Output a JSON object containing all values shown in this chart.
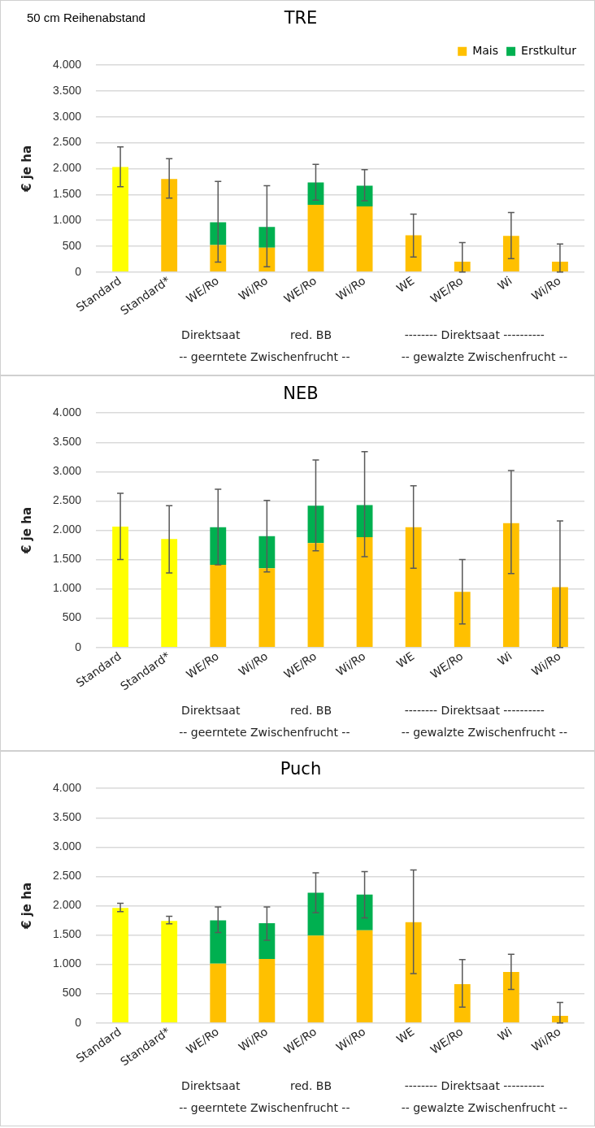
{
  "chart_data": [
    {
      "type": "bar",
      "title": "TRE",
      "subtitle": "50 cm Reihenabstand",
      "ylabel": "€ je ha",
      "stacked": true,
      "legend": "top right",
      "grid": "y",
      "categories": [
        "Standard",
        "Standard*",
        "WE/Ro",
        "Wi/Ro",
        "WE/Ro",
        "Wi/Ro",
        "WE",
        "WE/Ro",
        "Wi",
        "Wi/Ro"
      ],
      "ylim": [
        0,
        4000
      ],
      "yticks": [
        {
          "value": 0,
          "label": "0"
        },
        {
          "value": 500,
          "label": "500"
        },
        {
          "value": 1000,
          "label": "1.000"
        },
        {
          "value": 1500,
          "label": "1.500"
        },
        {
          "value": 2000,
          "label": "2.000"
        },
        {
          "value": 2500,
          "label": "2.500"
        },
        {
          "value": 3000,
          "label": "3.000"
        },
        {
          "value": 3500,
          "label": "3.500"
        },
        {
          "value": 4000,
          "label": "4.000"
        }
      ],
      "series": [
        {
          "name": "Mais",
          "color": "#ffc000",
          "colors": [
            "#ffff00",
            "#ffc000",
            "#ffc000",
            "#ffc000",
            "#ffc000",
            "#ffc000",
            "#ffc000",
            "#ffc000",
            "#ffc000",
            "#ffc000"
          ],
          "values": [
            2030,
            1800,
            520,
            470,
            1300,
            1270,
            710,
            200,
            700,
            200
          ],
          "errors": [
            [
              1650,
              2420
            ],
            [
              1430,
              2190
            ],
            null,
            null,
            null,
            null,
            [
              290,
              1120
            ],
            [
              0,
              570
            ],
            [
              260,
              1150
            ],
            [
              0,
              540
            ]
          ]
        },
        {
          "name": "Erstkultur",
          "color": "#00b050",
          "values": [
            null,
            null,
            440,
            400,
            430,
            400,
            null,
            null,
            null,
            null
          ],
          "errors": [
            null,
            null,
            [
              190,
              1750
            ],
            [
              100,
              1670
            ],
            [
              1390,
              2080
            ],
            [
              1380,
              1980
            ],
            null,
            null,
            null,
            null
          ]
        }
      ],
      "annotations": [
        "Direktsaat",
        "red. BB",
        "-------- Direktsaat ----------",
        "-- geerntete Zwischenfrucht --",
        "-- gewalzte Zwischenfrucht --"
      ]
    },
    {
      "type": "bar",
      "title": "NEB",
      "ylabel": "€ je ha",
      "stacked": true,
      "grid": "y",
      "categories": [
        "Standard",
        "Standard*",
        "WE/Ro",
        "Wi/Ro",
        "WE/Ro",
        "Wi/Ro",
        "WE",
        "WE/Ro",
        "Wi",
        "Wi/Ro"
      ],
      "ylim": [
        0,
        4000
      ],
      "yticks": [
        {
          "value": 0,
          "label": "0"
        },
        {
          "value": 500,
          "label": "500"
        },
        {
          "value": 1000,
          "label": "1.000"
        },
        {
          "value": 1500,
          "label": "1.500"
        },
        {
          "value": 2000,
          "label": "2.000"
        },
        {
          "value": 2500,
          "label": "2.500"
        },
        {
          "value": 3000,
          "label": "3.000"
        },
        {
          "value": 3500,
          "label": "3.500"
        },
        {
          "value": 4000,
          "label": "4.000"
        }
      ],
      "series": [
        {
          "color": "#ffc000",
          "colors": [
            "#ffff00",
            "#ffff00",
            "#ffc000",
            "#ffc000",
            "#ffc000",
            "#ffc000",
            "#ffc000",
            "#ffc000",
            "#ffc000",
            "#ffc000"
          ],
          "values": [
            2060,
            1850,
            1410,
            1350,
            1780,
            1880,
            2050,
            950,
            2120,
            1030
          ],
          "errors": [
            [
              1500,
              2630
            ],
            [
              1270,
              2420
            ],
            null,
            null,
            null,
            null,
            [
              1350,
              2760
            ],
            [
              400,
              1500
            ],
            [
              1260,
              3020
            ],
            [
              0,
              2160
            ]
          ]
        },
        {
          "color": "#00b050",
          "values": [
            null,
            null,
            640,
            550,
            640,
            550,
            null,
            null,
            null,
            null
          ],
          "errors": [
            null,
            null,
            [
              1410,
              2700
            ],
            [
              1290,
              2510
            ],
            [
              1650,
              3200
            ],
            [
              1550,
              3340
            ],
            null,
            null,
            null,
            null
          ]
        }
      ],
      "annotations": [
        "Direktsaat",
        "red. BB",
        "-------- Direktsaat ----------",
        "-- geerntete Zwischenfrucht --",
        "-- gewalzte Zwischenfrucht --"
      ]
    },
    {
      "type": "bar",
      "title": "Puch",
      "ylabel": "€ je ha",
      "stacked": true,
      "grid": "y",
      "categories": [
        "Standard",
        "Standard*",
        "WE/Ro",
        "Wi/Ro",
        "WE/Ro",
        "Wi/Ro",
        "WE",
        "WE/Ro",
        "Wi",
        "Wi/Ro"
      ],
      "ylim": [
        0,
        4000
      ],
      "yticks": [
        {
          "value": 0,
          "label": "0"
        },
        {
          "value": 500,
          "label": "500"
        },
        {
          "value": 1000,
          "label": "1.000"
        },
        {
          "value": 1500,
          "label": "1.500"
        },
        {
          "value": 2000,
          "label": "2.000"
        },
        {
          "value": 2500,
          "label": "2.500"
        },
        {
          "value": 3000,
          "label": "3.000"
        },
        {
          "value": 3500,
          "label": "3.500"
        },
        {
          "value": 4000,
          "label": "4.000"
        }
      ],
      "series": [
        {
          "color": "#ffc000",
          "colors": [
            "#ffff00",
            "#ffff00",
            "#ffc000",
            "#ffc000",
            "#ffc000",
            "#ffc000",
            "#ffc000",
            "#ffc000",
            "#ffc000",
            "#ffc000"
          ],
          "values": [
            1960,
            1740,
            1010,
            1090,
            1490,
            1580,
            1720,
            660,
            870,
            120
          ],
          "errors": [
            [
              1900,
              2040
            ],
            [
              1690,
              1820
            ],
            null,
            null,
            null,
            null,
            [
              840,
              2610
            ],
            [
              270,
              1080
            ],
            [
              570,
              1170
            ],
            [
              0,
              350
            ]
          ]
        },
        {
          "color": "#00b050",
          "values": [
            null,
            null,
            740,
            610,
            730,
            610,
            null,
            null,
            null,
            null
          ],
          "errors": [
            null,
            null,
            [
              1540,
              1980
            ],
            [
              1410,
              1980
            ],
            [
              1880,
              2560
            ],
            [
              1790,
              2580
            ],
            null,
            null,
            null,
            null
          ]
        }
      ],
      "annotations": [
        "Direktsaat",
        "red. BB",
        "-------- Direktsaat ----------",
        "-- geerntete Zwischenfrucht --",
        "-- gewalzte Zwischenfrucht --"
      ]
    }
  ]
}
